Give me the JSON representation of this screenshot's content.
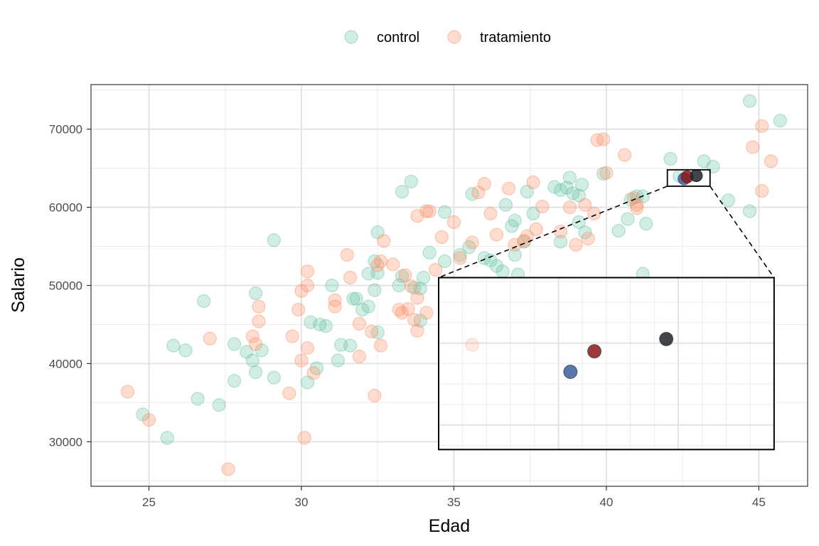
{
  "chart_data": {
    "type": "scatter",
    "title": "",
    "xlabel": "Edad",
    "ylabel": "Salario",
    "xlim": [
      23.1,
      46.6
    ],
    "ylim": [
      24300,
      75700
    ],
    "x_ticks": [
      25,
      30,
      35,
      40,
      45
    ],
    "y_ticks": [
      30000,
      40000,
      50000,
      60000,
      70000
    ],
    "grid": true,
    "legend_position": "top",
    "series": [
      {
        "name": "control",
        "color": "#66c2a5",
        "points": [
          [
            24.8,
            33500
          ],
          [
            25.6,
            30500
          ],
          [
            25.8,
            42300
          ],
          [
            26.2,
            41700
          ],
          [
            26.6,
            35500
          ],
          [
            26.8,
            48000
          ],
          [
            27.3,
            34700
          ],
          [
            27.8,
            37800
          ],
          [
            27.8,
            42500
          ],
          [
            28.2,
            41500
          ],
          [
            28.4,
            40400
          ],
          [
            28.5,
            38900
          ],
          [
            28.5,
            49000
          ],
          [
            28.7,
            41700
          ],
          [
            29.1,
            55800
          ],
          [
            29.1,
            38200
          ],
          [
            30.2,
            37600
          ],
          [
            30.3,
            45300
          ],
          [
            30.5,
            39400
          ],
          [
            30.6,
            45000
          ],
          [
            30.8,
            44800
          ],
          [
            31.0,
            50000
          ],
          [
            31.2,
            40400
          ],
          [
            31.3,
            42400
          ],
          [
            31.6,
            42300
          ],
          [
            31.7,
            48300
          ],
          [
            31.8,
            48300
          ],
          [
            32.0,
            46900
          ],
          [
            32.2,
            47300
          ],
          [
            32.2,
            51500
          ],
          [
            32.4,
            49400
          ],
          [
            32.4,
            53100
          ],
          [
            32.5,
            51600
          ],
          [
            32.5,
            56800
          ],
          [
            32.5,
            44000
          ],
          [
            33.2,
            50000
          ],
          [
            33.3,
            51200
          ],
          [
            33.3,
            62000
          ],
          [
            33.6,
            63300
          ],
          [
            33.7,
            49700
          ],
          [
            33.9,
            49600
          ],
          [
            33.9,
            45500
          ],
          [
            34.0,
            51000
          ],
          [
            34.2,
            54200
          ],
          [
            34.7,
            59400
          ],
          [
            34.7,
            53100
          ],
          [
            35.2,
            53900
          ],
          [
            35.5,
            54900
          ],
          [
            35.6,
            61700
          ],
          [
            36.0,
            53500
          ],
          [
            36.2,
            53200
          ],
          [
            36.4,
            52500
          ],
          [
            36.6,
            51800
          ],
          [
            36.7,
            60300
          ],
          [
            36.9,
            57600
          ],
          [
            37.0,
            53900
          ],
          [
            37.0,
            58300
          ],
          [
            37.1,
            51400
          ],
          [
            37.3,
            55600
          ],
          [
            37.4,
            62000
          ],
          [
            37.6,
            59200
          ],
          [
            38.3,
            62600
          ],
          [
            38.5,
            55600
          ],
          [
            38.5,
            62200
          ],
          [
            38.7,
            62500
          ],
          [
            38.8,
            63800
          ],
          [
            38.9,
            61800
          ],
          [
            39.1,
            58100
          ],
          [
            39.1,
            61500
          ],
          [
            39.2,
            62900
          ],
          [
            39.3,
            56800
          ],
          [
            39.9,
            64300
          ],
          [
            40.4,
            57000
          ],
          [
            40.7,
            58500
          ],
          [
            40.8,
            61000
          ],
          [
            41.0,
            61400
          ],
          [
            41.2,
            51500
          ],
          [
            41.2,
            61400
          ],
          [
            41.3,
            57900
          ],
          [
            42.1,
            66200
          ],
          [
            42.4,
            64000
          ],
          [
            43.2,
            65900
          ],
          [
            43.5,
            65200
          ],
          [
            44.0,
            60900
          ],
          [
            44.7,
            73600
          ],
          [
            44.7,
            59500
          ],
          [
            45.7,
            71100
          ]
        ]
      },
      {
        "name": "tratamiento",
        "color": "#fc8d62",
        "points": [
          [
            24.3,
            36400
          ],
          [
            25.0,
            32800
          ],
          [
            27.0,
            43200
          ],
          [
            27.6,
            26500
          ],
          [
            28.4,
            43500
          ],
          [
            28.5,
            42500
          ],
          [
            28.6,
            45400
          ],
          [
            28.6,
            47300
          ],
          [
            29.6,
            36200
          ],
          [
            29.7,
            43500
          ],
          [
            29.9,
            46900
          ],
          [
            30.0,
            49300
          ],
          [
            30.0,
            40400
          ],
          [
            30.1,
            30500
          ],
          [
            30.2,
            42000
          ],
          [
            30.2,
            50000
          ],
          [
            30.2,
            51800
          ],
          [
            30.4,
            38800
          ],
          [
            31.1,
            47300
          ],
          [
            31.1,
            48100
          ],
          [
            31.5,
            53900
          ],
          [
            31.6,
            51000
          ],
          [
            31.9,
            45100
          ],
          [
            31.9,
            40900
          ],
          [
            32.3,
            44100
          ],
          [
            32.4,
            35900
          ],
          [
            32.5,
            52600
          ],
          [
            32.6,
            53100
          ],
          [
            32.6,
            42300
          ],
          [
            32.7,
            55700
          ],
          [
            33.0,
            52700
          ],
          [
            33.2,
            46900
          ],
          [
            33.3,
            46500
          ],
          [
            33.4,
            51300
          ],
          [
            33.5,
            47000
          ],
          [
            33.6,
            49900
          ],
          [
            33.7,
            45600
          ],
          [
            33.8,
            58900
          ],
          [
            33.8,
            48400
          ],
          [
            33.8,
            44200
          ],
          [
            34.1,
            46500
          ],
          [
            34.1,
            59500
          ],
          [
            34.2,
            59500
          ],
          [
            34.4,
            52000
          ],
          [
            34.6,
            56200
          ],
          [
            35.0,
            58100
          ],
          [
            35.2,
            53500
          ],
          [
            35.6,
            55500
          ],
          [
            35.8,
            61900
          ],
          [
            36.0,
            63000
          ],
          [
            36.2,
            59200
          ],
          [
            36.4,
            56500
          ],
          [
            36.4,
            49900
          ],
          [
            36.8,
            62400
          ],
          [
            37.0,
            55200
          ],
          [
            37.3,
            55700
          ],
          [
            37.4,
            56300
          ],
          [
            37.6,
            63200
          ],
          [
            37.7,
            57200
          ],
          [
            37.9,
            60100
          ],
          [
            38.5,
            56900
          ],
          [
            38.8,
            60000
          ],
          [
            39.0,
            55200
          ],
          [
            39.3,
            60300
          ],
          [
            39.4,
            56000
          ],
          [
            39.6,
            59200
          ],
          [
            39.7,
            68600
          ],
          [
            39.9,
            68700
          ],
          [
            40.0,
            64400
          ],
          [
            40.6,
            66700
          ],
          [
            40.9,
            61200
          ],
          [
            41.0,
            60300
          ],
          [
            41.0,
            59900
          ],
          [
            44.8,
            67700
          ],
          [
            45.1,
            62100
          ],
          [
            45.1,
            70400
          ],
          [
            45.4,
            65900
          ]
        ]
      }
    ],
    "highlight_points": [
      {
        "x": 42.55,
        "y": 63650,
        "color": "#3c5f9a"
      },
      {
        "x": 42.65,
        "y": 63900,
        "color": "#8b1a1a"
      },
      {
        "x": 42.95,
        "y": 64050,
        "color": "#1f2629"
      }
    ],
    "inset": {
      "zoom_xlim": [
        42.0,
        43.4
      ],
      "zoom_ylim": [
        62700,
        64800
      ],
      "placement_xlim": [
        34.5,
        45.5
      ],
      "placement_ylim": [
        29000,
        51000
      ],
      "faint_point": {
        "x": 35.6,
        "y": 42400,
        "color": "#fc8d62"
      }
    }
  }
}
